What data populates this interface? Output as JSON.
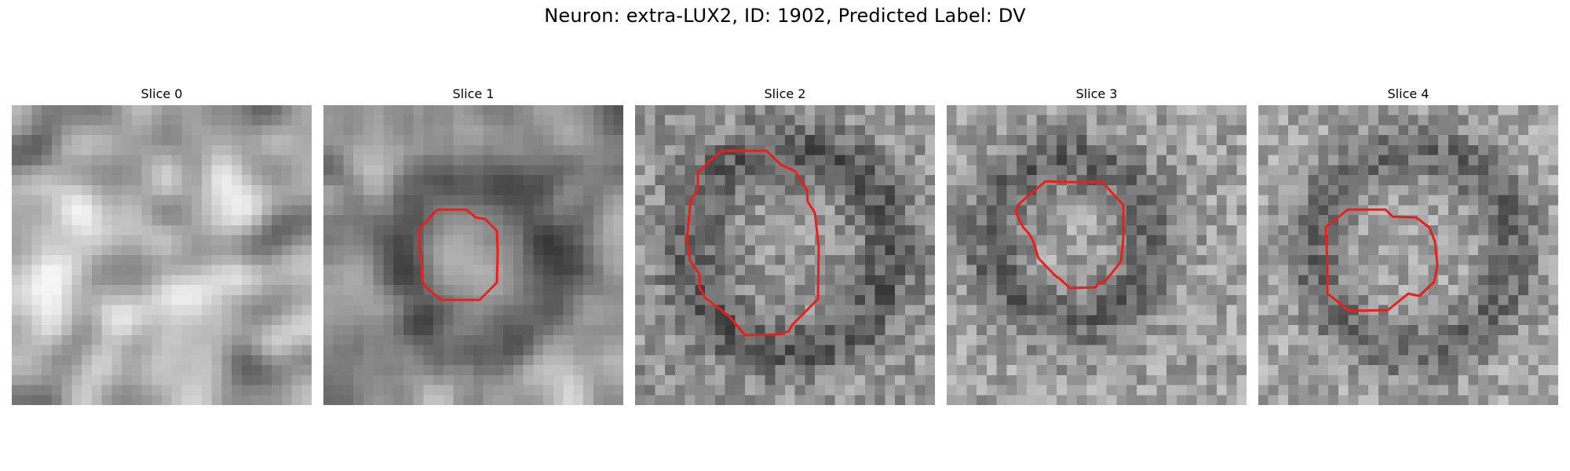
{
  "figure": {
    "title": "Neuron: extra-LUX2, ID: 1902, Predicted Label: DV"
  },
  "slices": [
    {
      "label": "Slice 0",
      "has_contour": false
    },
    {
      "label": "Slice 1",
      "has_contour": true
    },
    {
      "label": "Slice 2",
      "has_contour": true
    },
    {
      "label": "Slice 3",
      "has_contour": true
    },
    {
      "label": "Slice 4",
      "has_contour": true
    }
  ],
  "colors": {
    "background": "#ffffff",
    "contour": "#e8201c"
  }
}
